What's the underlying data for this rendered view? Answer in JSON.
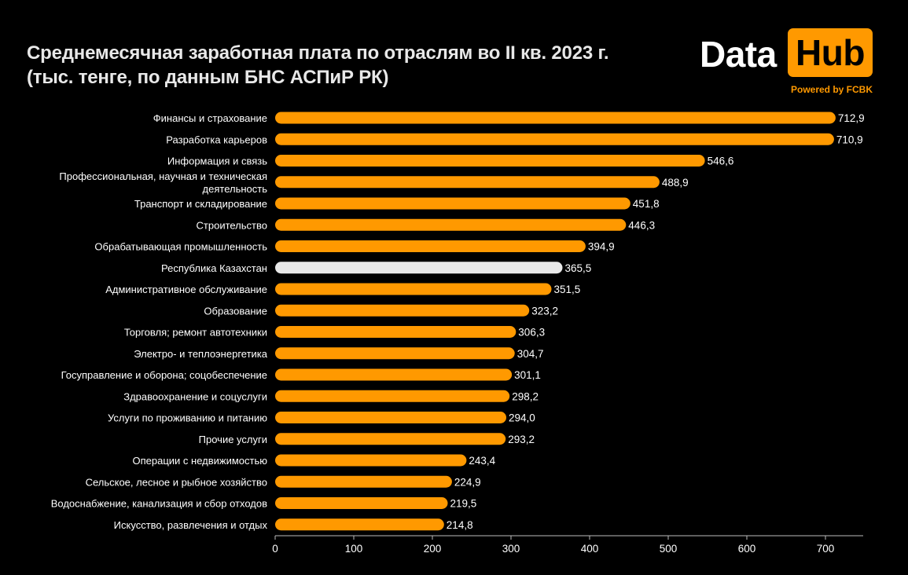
{
  "title": {
    "line1": "Среднемесячная заработная плата по отраслям во II кв. 2023 г.",
    "line2": "(тыс. тенге, по данным БНС АСПиР РК)"
  },
  "logo": {
    "data_text": "Data",
    "hub_text": "Hub",
    "powered_text": "Powered by FCBK"
  },
  "colors": {
    "background": "#000000",
    "bar": "#ff9900",
    "highlight_bar": "#e8e8e8",
    "text": "#ffffff",
    "axis": "#bbbbbb"
  },
  "chart_data": {
    "type": "bar",
    "orientation": "horizontal",
    "title": "Среднемесячная заработная плата по отраслям во II кв. 2023 г. (тыс. тенге, по данным БНС АСПиР РК)",
    "xlabel": "",
    "ylabel": "",
    "xlim": [
      0,
      750
    ],
    "xticks": [
      0,
      100,
      200,
      300,
      400,
      500,
      600,
      700
    ],
    "grid": false,
    "legend": "none",
    "categories": [
      [
        "Финансы и страхование"
      ],
      [
        "Разработка карьеров"
      ],
      [
        "Информация и связь"
      ],
      [
        "Профессиональная, научная и техническая",
        "деятельность"
      ],
      [
        "Транспорт и складирование"
      ],
      [
        "Строительство"
      ],
      [
        "Обрабатывающая промышленность"
      ],
      [
        "Республика Казахстан"
      ],
      [
        "Административное обслуживание"
      ],
      [
        "Образование"
      ],
      [
        "Торговля; ремонт автотехники"
      ],
      [
        "Электро- и теплоэнергетика"
      ],
      [
        "Госуправление и оборона; соцобеспечение"
      ],
      [
        "Здравоохранение и соцуслуги"
      ],
      [
        "Услуги по проживанию и питанию"
      ],
      [
        "Прочие услуги"
      ],
      [
        "Операции с недвижимостью"
      ],
      [
        "Сельское, лесное и рыбное хозяйство"
      ],
      [
        "Водоснабжение, канализация и сбор отходов"
      ],
      [
        "Искусство, развлечения и отдых"
      ]
    ],
    "values": [
      712.9,
      710.9,
      546.6,
      488.9,
      451.8,
      446.3,
      394.9,
      365.5,
      351.5,
      323.2,
      306.3,
      304.7,
      301.1,
      298.2,
      294.0,
      293.2,
      243.4,
      224.9,
      219.5,
      214.8
    ],
    "value_labels": [
      "712,9",
      "710,9",
      "546,6",
      "488,9",
      "451,8",
      "446,3",
      "394,9",
      "365,5",
      "351,5",
      "323,2",
      "306,3",
      "304,7",
      "301,1",
      "298,2",
      "294,0",
      "293,2",
      "243,4",
      "224,9",
      "219,5",
      "214,8"
    ],
    "highlight": [
      "Республика Казахстан"
    ]
  }
}
